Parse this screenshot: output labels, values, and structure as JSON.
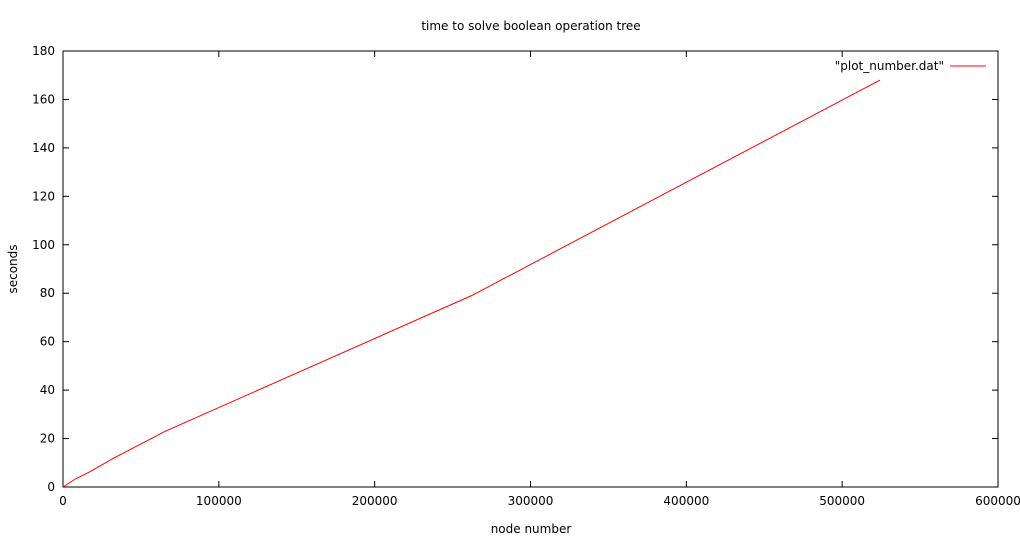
{
  "chart_data": {
    "type": "line",
    "title": "time to solve boolean operation tree",
    "xlabel": "node number",
    "ylabel": "seconds",
    "xlim": [
      0,
      600000
    ],
    "ylim": [
      0,
      180
    ],
    "xticks": [
      0,
      100000,
      200000,
      300000,
      400000,
      500000,
      600000
    ],
    "yticks": [
      0,
      20,
      40,
      60,
      80,
      100,
      120,
      140,
      160,
      180
    ],
    "grid": false,
    "legend_position": "top-right",
    "series": [
      {
        "name": "\"plot_number.dat\"",
        "color": "#ff0000",
        "x": [
          0,
          8192,
          16384,
          32768,
          65536,
          262144,
          524288
        ],
        "y": [
          0,
          3.4,
          6,
          12,
          23,
          79,
          168
        ]
      }
    ]
  }
}
